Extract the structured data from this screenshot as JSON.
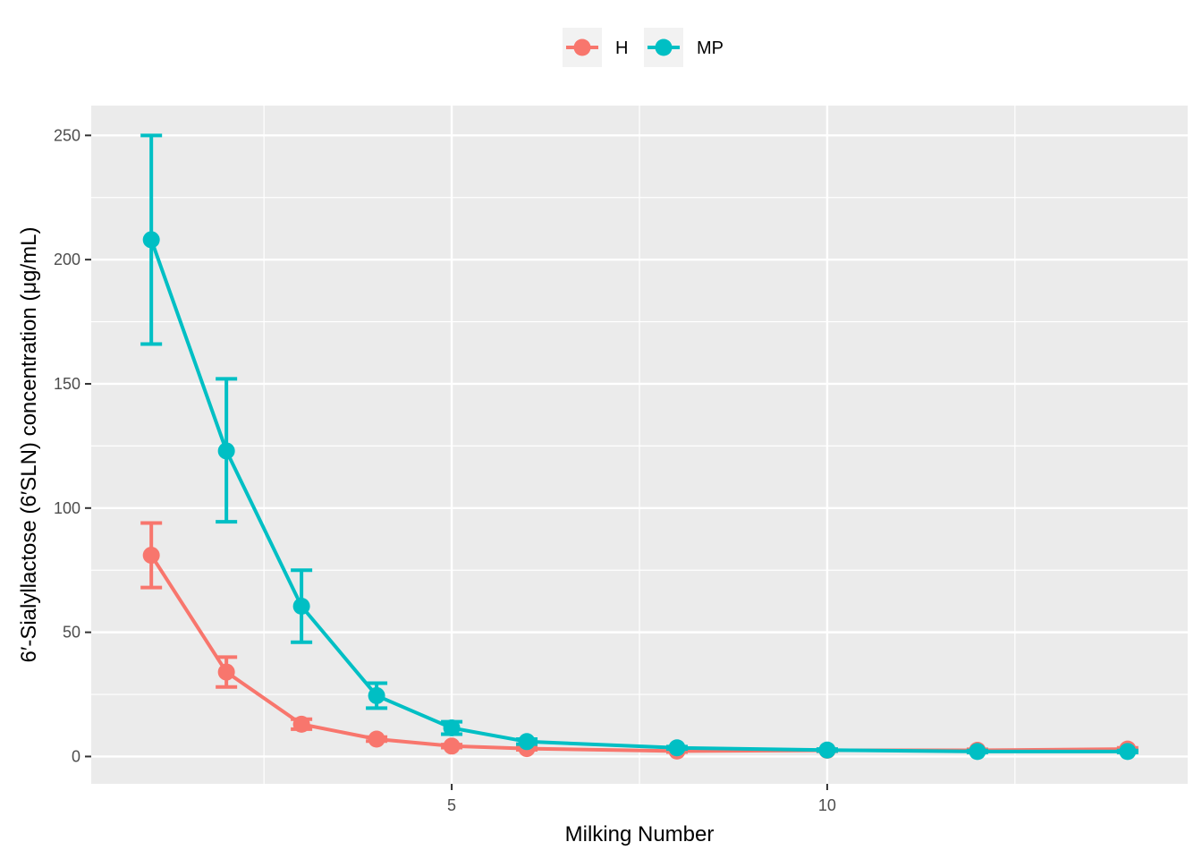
{
  "chart_data": {
    "type": "line",
    "xlabel": "Milking Number",
    "ylabel": "6′-Sialyllactose (6′SLN) concentration (μg/mL)",
    "xlim": [
      0.2,
      14.8
    ],
    "ylim": [
      -11,
      262
    ],
    "x_major_ticks": [
      5,
      10
    ],
    "x_minor_ticks": [
      2.5,
      7.5,
      12.5
    ],
    "y_major_ticks": [
      0,
      50,
      100,
      150,
      200,
      250
    ],
    "y_minor_ticks": [
      25,
      75,
      125,
      175,
      225
    ],
    "grid": true,
    "legend_position": "top",
    "error_bars": true,
    "series": [
      {
        "name": "H",
        "color": "#F8766D",
        "x": [
          1,
          2,
          3,
          4,
          5,
          6,
          8,
          10,
          12,
          14
        ],
        "y": [
          81,
          34,
          13,
          7,
          4.2,
          3.2,
          2.2,
          2.5,
          2.5,
          3
        ],
        "err_low": [
          68,
          28,
          11,
          6.2,
          3.6,
          2.7,
          1.8,
          2.1,
          2.1,
          2.5
        ],
        "err_high": [
          94,
          40,
          15,
          7.8,
          4.8,
          3.7,
          2.6,
          2.9,
          2.9,
          3.5
        ]
      },
      {
        "name": "MP",
        "color": "#00BFC4",
        "x": [
          1,
          2,
          3,
          4,
          5,
          6,
          8,
          10,
          12,
          14
        ],
        "y": [
          208,
          123,
          60.5,
          24.5,
          11.5,
          6,
          3.5,
          2.6,
          2,
          2
        ],
        "err_low": [
          166,
          94.5,
          46,
          19.5,
          9,
          5,
          3,
          2.2,
          1.6,
          1.6
        ],
        "err_high": [
          250,
          152,
          75,
          29.5,
          14,
          7,
          4,
          3,
          2.4,
          2.4
        ]
      }
    ]
  }
}
